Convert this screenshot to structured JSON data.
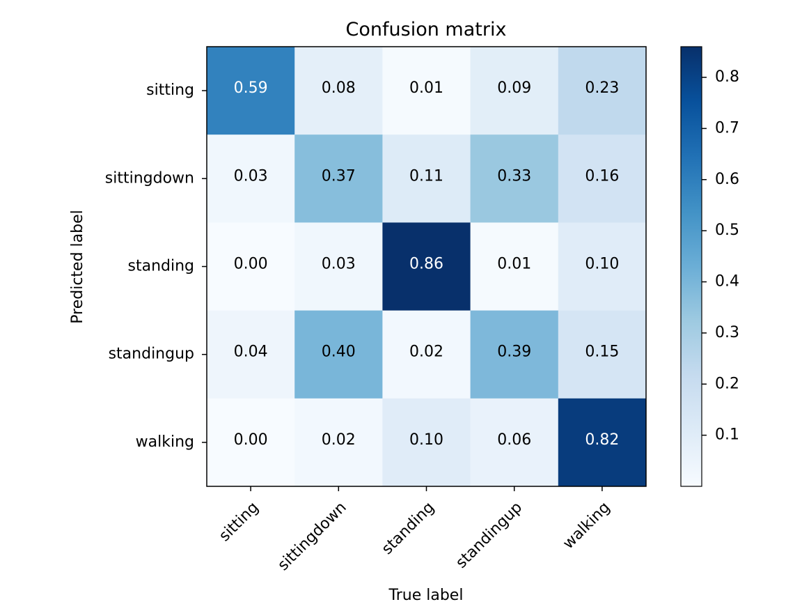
{
  "chart_data": {
    "type": "heatmap",
    "title": "Confusion matrix",
    "xlabel": "True label",
    "ylabel": "Predicted label",
    "x_categories": [
      "sitting",
      "sittingdown",
      "standing",
      "standingup",
      "walking"
    ],
    "y_categories": [
      "sitting",
      "sittingdown",
      "standing",
      "standingup",
      "walking"
    ],
    "matrix": [
      [
        0.59,
        0.08,
        0.01,
        0.09,
        0.23
      ],
      [
        0.03,
        0.37,
        0.11,
        0.33,
        0.16
      ],
      [
        0.0,
        0.03,
        0.86,
        0.01,
        0.1
      ],
      [
        0.04,
        0.4,
        0.02,
        0.39,
        0.15
      ],
      [
        0.0,
        0.02,
        0.1,
        0.06,
        0.82
      ]
    ],
    "value_labels": [
      [
        "0.59",
        "0.08",
        "0.01",
        "0.09",
        "0.23"
      ],
      [
        "0.03",
        "0.37",
        "0.11",
        "0.33",
        "0.16"
      ],
      [
        "0.00",
        "0.03",
        "0.86",
        "0.01",
        "0.10"
      ],
      [
        "0.04",
        "0.40",
        "0.02",
        "0.39",
        "0.15"
      ],
      [
        "0.00",
        "0.02",
        "0.10",
        "0.06",
        "0.82"
      ]
    ],
    "colormap": "Blues",
    "color_range": [
      0.0,
      0.86
    ],
    "colorbar_ticks": [
      0.1,
      0.2,
      0.3,
      0.4,
      0.5,
      0.6,
      0.7,
      0.8
    ],
    "colorbar_tick_labels": [
      "0.1",
      "0.2",
      "0.3",
      "0.4",
      "0.5",
      "0.6",
      "0.7",
      "0.8"
    ],
    "colors": {
      "low": "#f7fbff",
      "high": "#08306b",
      "text_dark": "#000000",
      "text_light": "#ffffff"
    }
  }
}
